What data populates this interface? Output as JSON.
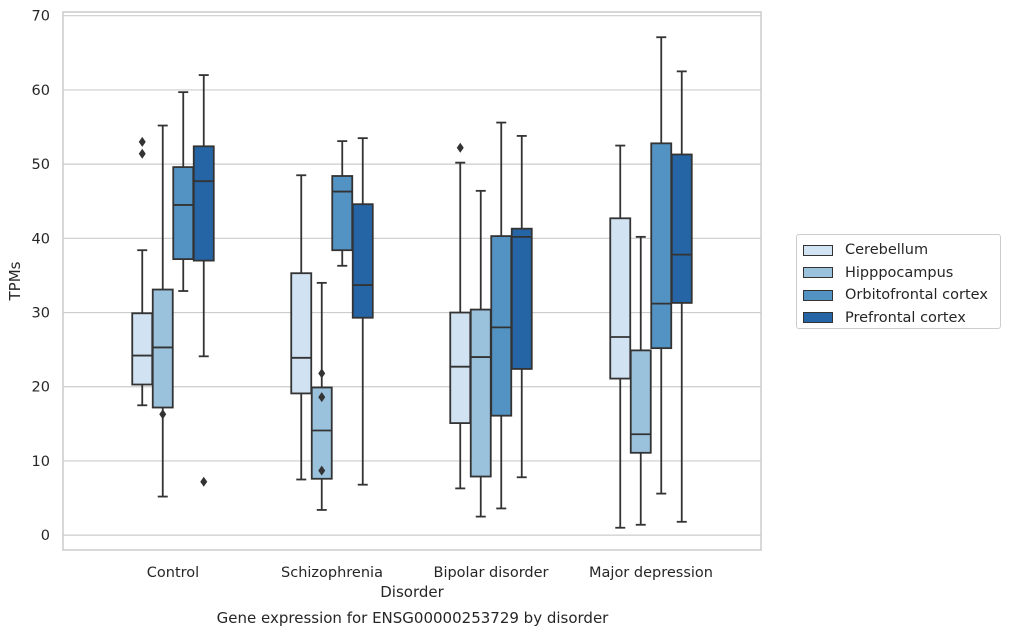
{
  "figure": {
    "caption": "Gene expression for ENSG00000253729 by disorder"
  },
  "chart_data": {
    "type": "box",
    "xlabel": "Disorder",
    "ylabel": "TPMs",
    "ylim": [
      -2,
      70.5
    ],
    "y_ticks": [
      0,
      10,
      20,
      30,
      40,
      50,
      60,
      70
    ],
    "grid": "horizontal",
    "legend_placement": "right",
    "categories": [
      "Control",
      "Schizophrenia",
      "Bipolar disorder",
      "Major depression"
    ],
    "series": [
      {
        "name": "Cerebellum",
        "color": "#d1e2f2",
        "boxes": [
          {
            "whisker_low": 17.5,
            "q1": 20.3,
            "median": 24.2,
            "q3": 29.9,
            "whisker_high": 38.4,
            "outliers": [
              51.4,
              53.0
            ]
          },
          {
            "whisker_low": 7.5,
            "q1": 19.1,
            "median": 23.9,
            "q3": 35.3,
            "whisker_high": 48.5,
            "outliers": []
          },
          {
            "whisker_low": 6.3,
            "q1": 15.1,
            "median": 22.7,
            "q3": 30.0,
            "whisker_high": 50.2,
            "outliers": [
              52.2
            ]
          },
          {
            "whisker_low": 1.0,
            "q1": 21.1,
            "median": 26.7,
            "q3": 42.7,
            "whisker_high": 52.5,
            "outliers": []
          }
        ]
      },
      {
        "name": "Hipppocampus",
        "color": "#9ac2dd",
        "boxes": [
          {
            "whisker_low": 5.2,
            "q1": 17.2,
            "median": 25.3,
            "q3": 33.1,
            "whisker_high": 55.2,
            "outliers": [
              16.3
            ]
          },
          {
            "whisker_low": 3.4,
            "q1": 7.6,
            "median": 14.1,
            "q3": 19.9,
            "whisker_high": 34.0,
            "outliers": [
              8.7,
              18.6,
              21.8
            ]
          },
          {
            "whisker_low": 2.5,
            "q1": 7.9,
            "median": 24.0,
            "q3": 30.4,
            "whisker_high": 46.4,
            "outliers": []
          },
          {
            "whisker_low": 1.4,
            "q1": 11.1,
            "median": 13.6,
            "q3": 24.9,
            "whisker_high": 40.2,
            "outliers": []
          }
        ]
      },
      {
        "name": "Orbitofrontal cortex",
        "color": "#5393c3",
        "boxes": [
          {
            "whisker_low": 32.9,
            "q1": 37.2,
            "median": 44.5,
            "q3": 49.6,
            "whisker_high": 59.7,
            "outliers": []
          },
          {
            "whisker_low": 36.3,
            "q1": 38.4,
            "median": 46.3,
            "q3": 48.4,
            "whisker_high": 53.1,
            "outliers": []
          },
          {
            "whisker_low": 3.6,
            "q1": 16.1,
            "median": 28.0,
            "q3": 40.3,
            "whisker_high": 55.6,
            "outliers": []
          },
          {
            "whisker_low": 5.6,
            "q1": 25.2,
            "median": 31.2,
            "q3": 52.8,
            "whisker_high": 67.1,
            "outliers": []
          }
        ]
      },
      {
        "name": "Prefrontal cortex",
        "color": "#2565a5",
        "boxes": [
          {
            "whisker_low": 24.1,
            "q1": 37.0,
            "median": 47.7,
            "q3": 52.4,
            "whisker_high": 62.0,
            "outliers": [
              7.2
            ]
          },
          {
            "whisker_low": 6.8,
            "q1": 29.3,
            "median": 33.7,
            "q3": 44.6,
            "whisker_high": 53.5,
            "outliers": []
          },
          {
            "whisker_low": 7.8,
            "q1": 22.4,
            "median": 40.2,
            "q3": 41.3,
            "whisker_high": 53.8,
            "outliers": []
          },
          {
            "whisker_low": 1.8,
            "q1": 31.3,
            "median": 37.8,
            "q3": 51.3,
            "whisker_high": 62.5,
            "outliers": []
          }
        ]
      }
    ]
  }
}
